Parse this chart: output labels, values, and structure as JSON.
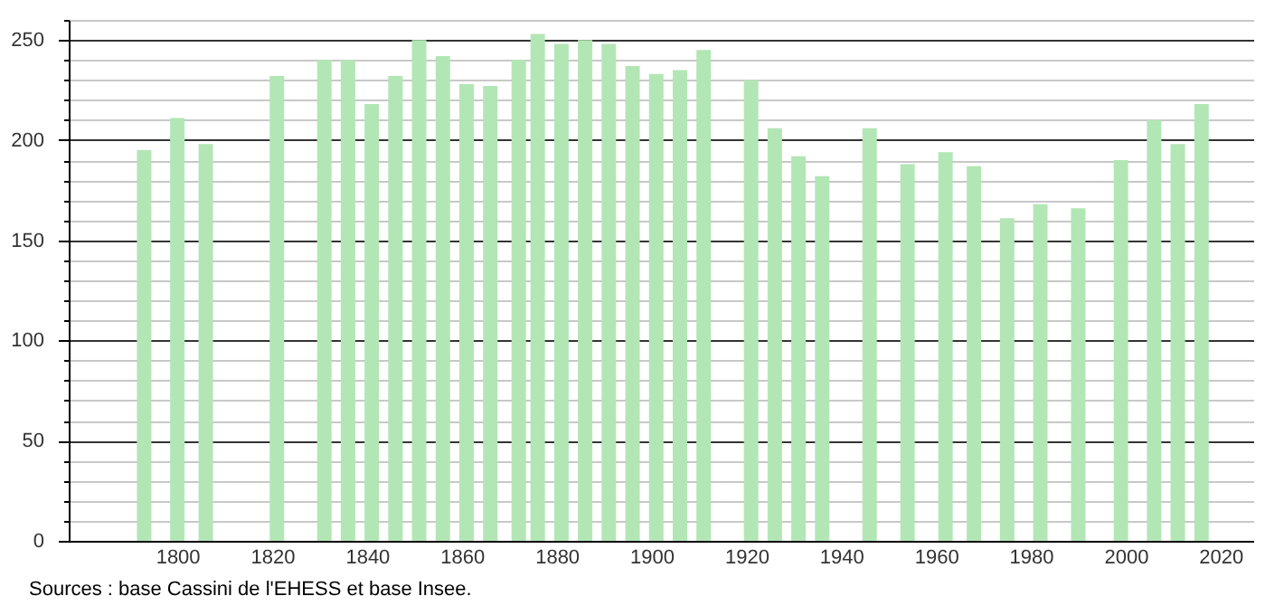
{
  "chart_data": {
    "type": "bar",
    "x": [
      1793,
      1800,
      1806,
      1821,
      1831,
      1836,
      1841,
      1846,
      1851,
      1856,
      1861,
      1866,
      1872,
      1876,
      1881,
      1886,
      1891,
      1896,
      1901,
      1906,
      1911,
      1921,
      1926,
      1931,
      1936,
      1946,
      1954,
      1962,
      1968,
      1975,
      1982,
      1990,
      1999,
      2006,
      2011,
      2016
    ],
    "values": [
      195,
      211,
      198,
      232,
      240,
      240,
      218,
      232,
      250,
      242,
      228,
      227,
      240,
      253,
      248,
      250,
      248,
      237,
      233,
      235,
      245,
      230,
      206,
      192,
      182,
      206,
      188,
      194,
      187,
      161,
      168,
      166,
      190,
      210,
      198,
      218
    ],
    "color": "#b3e6b5",
    "xlim": [
      1779,
      2025
    ],
    "xticks": [
      1800,
      1820,
      1840,
      1860,
      1880,
      1900,
      1920,
      1940,
      1960,
      1980,
      2000,
      2020
    ],
    "ylim": [
      0,
      260
    ],
    "yticks": [
      0,
      {
        "value": 10,
        "label": null
      },
      {
        "value": 20,
        "label": null
      },
      {
        "value": 30,
        "label": null
      },
      {
        "value": 40,
        "label": null
      },
      50,
      {
        "value": 60,
        "label": null
      },
      {
        "value": 70,
        "label": null
      },
      {
        "value": 80,
        "label": null
      },
      {
        "value": 90,
        "label": null
      },
      100,
      {
        "value": 110,
        "label": null
      },
      {
        "value": 120,
        "label": null
      },
      {
        "value": 130,
        "label": null
      },
      {
        "value": 140,
        "label": null
      },
      150,
      {
        "value": 160,
        "label": null
      },
      {
        "value": 170,
        "label": null
      },
      {
        "value": 180,
        "label": null
      },
      {
        "value": 190,
        "label": null
      },
      200,
      {
        "value": 210,
        "label": null
      },
      {
        "value": 220,
        "label": null
      },
      {
        "value": 230,
        "label": null
      },
      {
        "value": 240,
        "label": null
      },
      250,
      {
        "value": 260,
        "label": null
      }
    ],
    "grid": "y",
    "annotations": [
      "Sources : base Cassini de l'EHESS et base Insee."
    ]
  }
}
